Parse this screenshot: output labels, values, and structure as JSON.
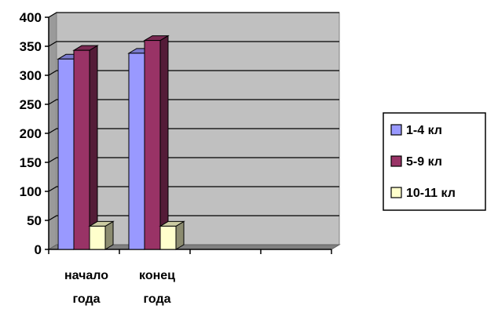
{
  "chart_data": {
    "type": "bar",
    "style": "3d-clustered-column",
    "categories": [
      [
        "начало",
        "года"
      ],
      [
        "конец",
        "года"
      ],
      [
        ""
      ],
      [
        ""
      ]
    ],
    "series": [
      {
        "name": "1-4 кл",
        "color": "#9999ff",
        "values": [
          328,
          338,
          null,
          null
        ]
      },
      {
        "name": "5-9 кл",
        "color": "#993366",
        "values": [
          343,
          360,
          null,
          null
        ]
      },
      {
        "name": "10-11 кл",
        "color": "#ffffcc",
        "values": [
          40,
          40,
          null,
          null
        ]
      }
    ],
    "title": "",
    "xlabel": "",
    "ylabel": "",
    "ylim": [
      0,
      400
    ],
    "yticks": [
      0,
      50,
      100,
      150,
      200,
      250,
      300,
      350,
      400
    ],
    "grid": true,
    "plot_background": "#c0c0c0",
    "legend_position": "right"
  }
}
